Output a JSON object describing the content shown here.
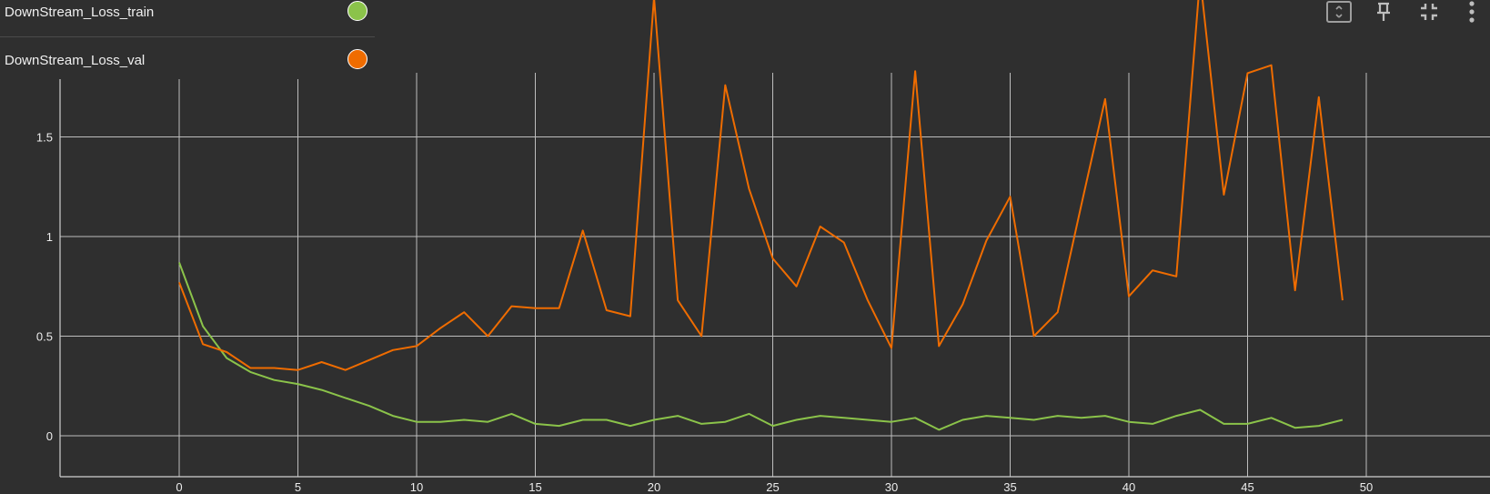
{
  "legend": [
    {
      "name": "DownStream_Loss_train",
      "color": "#8bc34a"
    },
    {
      "name": "DownStream_Loss_val",
      "color": "#ef6c00"
    }
  ],
  "toolbar": {
    "icons": [
      "fit-domain-icon",
      "pin-icon",
      "collapse-icon",
      "more-options-icon"
    ]
  },
  "colors": {
    "background": "#2f2f2f",
    "grid": "#bdbdbd",
    "train": "#8bc34a",
    "val": "#ef6c00"
  },
  "chart_data": {
    "type": "line",
    "title": "",
    "xlabel": "",
    "ylabel": "",
    "xlim": [
      -5,
      55
    ],
    "ylim": [
      -0.2,
      1.85
    ],
    "grid": true,
    "legend_placement": "top-left",
    "xticks": [
      "0",
      "5",
      "10",
      "15",
      "20",
      "25",
      "30",
      "35",
      "40",
      "45",
      "50"
    ],
    "yticks": [
      "0",
      "0.5",
      "1",
      "1.5"
    ],
    "x": [
      0,
      1,
      2,
      3,
      4,
      5,
      6,
      7,
      8,
      9,
      10,
      11,
      12,
      13,
      14,
      15,
      16,
      17,
      18,
      19,
      20,
      21,
      22,
      23,
      24,
      25,
      26,
      27,
      28,
      29,
      30,
      31,
      32,
      33,
      34,
      35,
      36,
      37,
      38,
      39,
      40,
      41,
      42,
      43,
      44,
      45,
      46,
      47,
      48,
      49
    ],
    "series": [
      {
        "name": "DownStream_Loss_train",
        "values": [
          0.87,
          0.55,
          0.39,
          0.32,
          0.28,
          0.26,
          0.23,
          0.19,
          0.15,
          0.1,
          0.07,
          0.07,
          0.08,
          0.07,
          0.11,
          0.06,
          0.05,
          0.08,
          0.08,
          0.05,
          0.08,
          0.1,
          0.06,
          0.07,
          0.11,
          0.05,
          0.08,
          0.1,
          0.09,
          0.08,
          0.07,
          0.09,
          0.03,
          0.08,
          0.1,
          0.09,
          0.08,
          0.1,
          0.09,
          0.1,
          0.07,
          0.06,
          0.1,
          0.13,
          0.06,
          0.06,
          0.09,
          0.04,
          0.05,
          0.08
        ]
      },
      {
        "name": "DownStream_Loss_val",
        "values": [
          0.77,
          0.46,
          0.42,
          0.34,
          0.34,
          0.33,
          0.37,
          0.33,
          0.38,
          0.43,
          0.45,
          0.54,
          0.62,
          0.5,
          0.65,
          0.64,
          0.64,
          1.03,
          0.63,
          0.6,
          2.2,
          0.68,
          0.5,
          1.76,
          1.24,
          0.89,
          0.75,
          1.05,
          0.97,
          0.68,
          0.44,
          1.83,
          0.45,
          0.66,
          0.98,
          1.2,
          0.5,
          0.62,
          1.16,
          1.69,
          0.7,
          0.83,
          0.8,
          2.3,
          1.21,
          1.82,
          1.86,
          0.73,
          1.7,
          0.68
        ]
      }
    ]
  }
}
